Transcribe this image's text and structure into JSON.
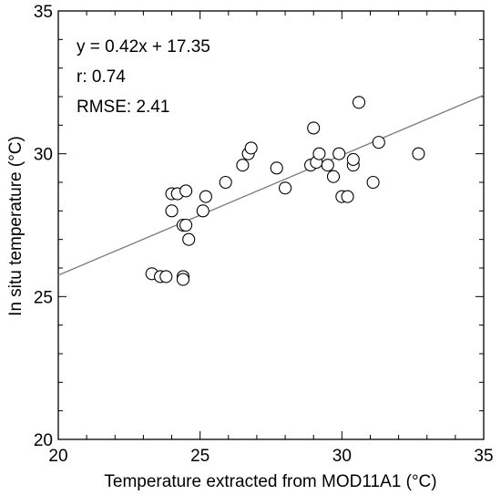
{
  "chart_data": {
    "type": "scatter",
    "xlabel": "Temperature extracted from MOD11A1 (°C)",
    "ylabel": "In situ temperature (°C)",
    "xlim": [
      20,
      35
    ],
    "ylim": [
      20,
      35
    ],
    "xticks": [
      20,
      25,
      30,
      35
    ],
    "yticks": [
      20,
      25,
      30,
      35
    ],
    "xtick_labels": [
      "20",
      "25",
      "30",
      "35"
    ],
    "ytick_labels": [
      "20",
      "25",
      "30",
      "35"
    ],
    "grid": false,
    "annotations": [
      "y = 0.42x + 17.35",
      "r: 0.74",
      "RMSE: 2.41"
    ],
    "regression": {
      "slope": 0.42,
      "intercept": 17.35
    },
    "colors": {
      "line": "#808080",
      "marker_stroke": "#000000",
      "marker_fill": "#ffffff"
    },
    "points": [
      [
        23.3,
        25.8
      ],
      [
        23.6,
        25.7
      ],
      [
        23.8,
        25.7
      ],
      [
        24.4,
        25.7
      ],
      [
        24.4,
        25.6
      ],
      [
        24.0,
        28.6
      ],
      [
        24.2,
        28.6
      ],
      [
        24.5,
        28.7
      ],
      [
        24.0,
        28.0
      ],
      [
        24.4,
        27.5
      ],
      [
        24.5,
        27.5
      ],
      [
        24.6,
        27.0
      ],
      [
        25.1,
        28.0
      ],
      [
        25.2,
        28.5
      ],
      [
        25.9,
        29.0
      ],
      [
        26.5,
        29.6
      ],
      [
        26.7,
        30.0
      ],
      [
        26.8,
        30.2
      ],
      [
        27.7,
        29.5
      ],
      [
        28.0,
        28.8
      ],
      [
        28.9,
        29.6
      ],
      [
        29.0,
        30.9
      ],
      [
        29.1,
        29.7
      ],
      [
        29.2,
        30.0
      ],
      [
        29.5,
        29.6
      ],
      [
        29.7,
        29.2
      ],
      [
        29.9,
        30.0
      ],
      [
        30.0,
        28.5
      ],
      [
        30.2,
        28.5
      ],
      [
        30.4,
        29.6
      ],
      [
        30.4,
        29.8
      ],
      [
        30.6,
        31.8
      ],
      [
        31.1,
        29.0
      ],
      [
        31.3,
        30.4
      ],
      [
        32.7,
        30.0
      ]
    ]
  }
}
